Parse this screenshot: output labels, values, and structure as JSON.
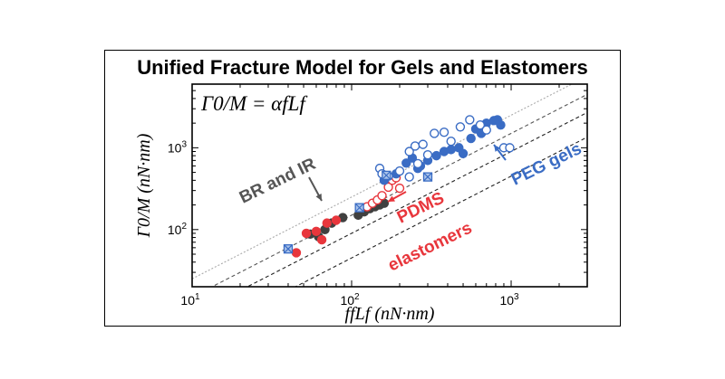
{
  "chart_data": {
    "type": "scatter",
    "title": "Unified Fracture Model for Gels and Elastomers",
    "equation": "Γ0/M = αfLf",
    "xlabel": "ffLf (nN·nm)",
    "ylabel": "Γ0/M (nN·nm)",
    "xscale": "log",
    "yscale": "log",
    "xlim": [
      10,
      3000
    ],
    "ylim": [
      20,
      6000
    ],
    "x_tick_labels": [
      {
        "base": "10",
        "exp": "1"
      },
      {
        "base": "10",
        "exp": "2"
      },
      {
        "base": "10",
        "exp": "3"
      }
    ],
    "y_tick_labels": [
      {
        "base": "10",
        "exp": "2"
      },
      {
        "base": "10",
        "exp": "3"
      }
    ],
    "x_ticks": [
      10,
      100,
      1000
    ],
    "y_ticks": [
      100,
      1000
    ],
    "reference_lines": [
      {
        "slope_alpha": 0.45,
        "style": "dashed",
        "color": "#222222"
      },
      {
        "slope_alpha": 0.9,
        "style": "dashed",
        "color": "#222222"
      },
      {
        "slope_alpha": 1.5,
        "style": "dashed",
        "color": "#555555"
      },
      {
        "slope_alpha": 2.5,
        "style": "dotted",
        "color": "#aaaaaa"
      }
    ],
    "annotations": [
      {
        "text": "BR and IR",
        "color": "#555555"
      },
      {
        "text": "PDMS",
        "color": "#e8363c"
      },
      {
        "text": "elastomers",
        "color": "#e8363c"
      },
      {
        "text": "PEG gels",
        "color": "#3a6cc4"
      }
    ],
    "series": [
      {
        "name": "BR and IR",
        "color": "#404040",
        "points": [
          [
            55,
            88
          ],
          [
            62,
            82
          ],
          [
            68,
            100
          ],
          [
            75,
            120
          ],
          [
            88,
            140
          ],
          [
            110,
            150
          ],
          [
            120,
            165
          ],
          [
            130,
            180
          ],
          [
            150,
            200
          ],
          [
            160,
            210
          ],
          [
            140,
            190
          ]
        ]
      },
      {
        "name": "PDMS elastomers filled",
        "color": "#e8363c",
        "points": [
          [
            45,
            52
          ],
          [
            52,
            90
          ],
          [
            60,
            95
          ],
          [
            65,
            75
          ],
          [
            70,
            120
          ],
          [
            80,
            130
          ]
        ]
      },
      {
        "name": "PDMS elastomers open",
        "color": "#e8363c",
        "points": [
          [
            125,
            190
          ],
          [
            135,
            210
          ],
          [
            145,
            230
          ],
          [
            155,
            260
          ],
          [
            170,
            330
          ],
          [
            180,
            400
          ],
          [
            190,
            430
          ],
          [
            200,
            320
          ]
        ]
      },
      {
        "name": "PEG gels filled",
        "color": "#3a6cc4",
        "points": [
          [
            160,
            400
          ],
          [
            190,
            480
          ],
          [
            220,
            650
          ],
          [
            260,
            560
          ],
          [
            300,
            700
          ],
          [
            340,
            800
          ],
          [
            380,
            900
          ],
          [
            420,
            950
          ],
          [
            470,
            1000
          ],
          [
            500,
            850
          ],
          [
            560,
            1300
          ],
          [
            600,
            1700
          ],
          [
            650,
            1500
          ],
          [
            700,
            2000
          ],
          [
            780,
            2150
          ],
          [
            820,
            2200
          ],
          [
            860,
            1900
          ],
          [
            240,
            750
          ],
          [
            270,
            600
          ]
        ]
      },
      {
        "name": "PEG gels open",
        "color": "#3a6cc4",
        "points": [
          [
            150,
            560
          ],
          [
            155,
            480
          ],
          [
            170,
            450
          ],
          [
            200,
            520
          ],
          [
            230,
            900
          ],
          [
            250,
            1050
          ],
          [
            280,
            1100
          ],
          [
            260,
            640
          ],
          [
            300,
            820
          ],
          [
            330,
            1500
          ],
          [
            380,
            1550
          ],
          [
            420,
            1200
          ],
          [
            480,
            1800
          ],
          [
            550,
            2200
          ],
          [
            640,
            1900
          ],
          [
            700,
            1650
          ],
          [
            900,
            1000
          ],
          [
            980,
            1000
          ],
          [
            230,
            440
          ]
        ]
      },
      {
        "name": "PEG gels crossed",
        "color": "#3a6cc4",
        "points": [
          [
            40,
            58
          ],
          [
            112,
            185
          ],
          [
            165,
            460
          ],
          [
            300,
            440
          ]
        ]
      }
    ]
  }
}
